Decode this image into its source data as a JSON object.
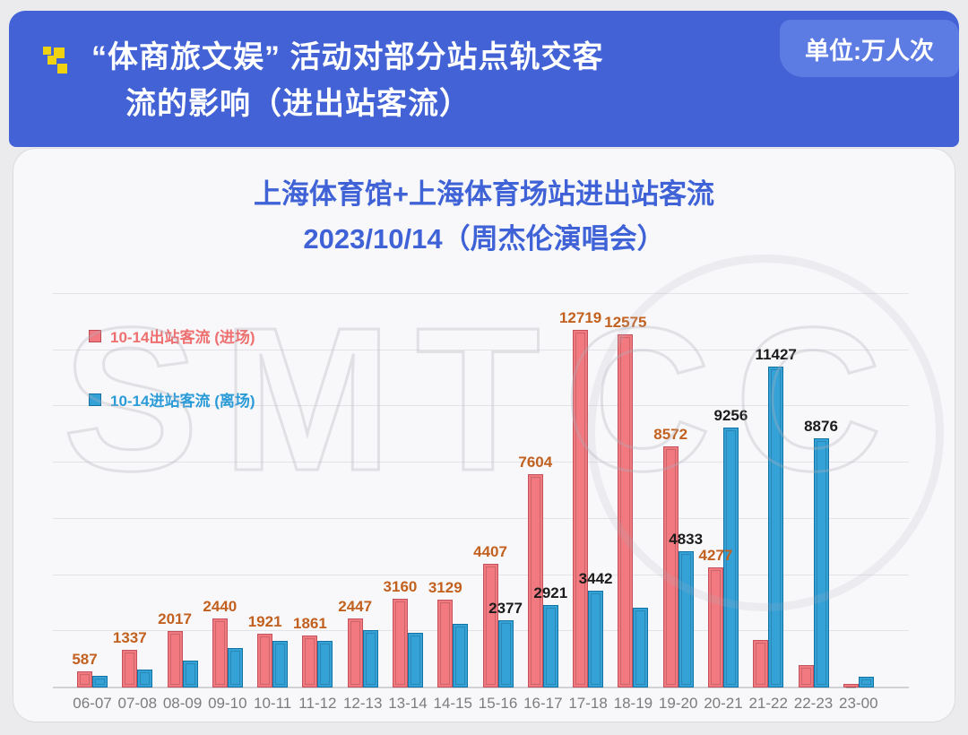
{
  "header": {
    "title_line1": "“体商旅文娱” 活动对部分站点轨交客",
    "title_line2": "流的影响（进出站客流）",
    "unit_badge": "单位:万人次",
    "banner_color": "#4262d6",
    "badge_color": "#5d7ce3",
    "logo_color": "#f0d210"
  },
  "chart": {
    "title_line1": "上海体育馆+上海体育场站进出站客流",
    "title_line2": "2023/10/14（周杰伦演唱会）",
    "title_color": "#3f62d7",
    "watermark": "SMTCC"
  },
  "chart_data": {
    "type": "bar",
    "title": "上海体育馆+上海体育场站进出站客流 2023/10/14（周杰伦演唱会）",
    "unit": "万人次",
    "categories": [
      "06-07",
      "07-08",
      "08-09",
      "09-10",
      "10-11",
      "11-12",
      "12-13",
      "13-14",
      "14-15",
      "15-16",
      "16-17",
      "17-18",
      "18-19",
      "19-20",
      "20-21",
      "21-22",
      "22-23",
      "23-00"
    ],
    "series": [
      {
        "name": "10-14出站客流 (进场)",
        "color": "#f1797f",
        "border_color": "#c2525c",
        "label_color": "#c2611f",
        "values": [
          587,
          1337,
          2017,
          2440,
          1921,
          1861,
          2447,
          3160,
          3129,
          4407,
          7604,
          12719,
          12575,
          8572,
          4277,
          1700,
          800,
          130
        ],
        "labels": [
          "587",
          "1337",
          "2017",
          "2440",
          "1921",
          "1861",
          "2447",
          "3160",
          "3129",
          "4407",
          "7604",
          "12719",
          "12575",
          "8572",
          "4277",
          "",
          "",
          ""
        ]
      },
      {
        "name": "10-14进站客流 (离场)",
        "color": "#34a1d7",
        "border_color": "#1272a3",
        "label_color": "#1b1b1b",
        "values": [
          400,
          640,
          970,
          1400,
          1670,
          1650,
          2040,
          1950,
          2250,
          2377,
          2921,
          3442,
          2850,
          4833,
          9256,
          11427,
          8876,
          370
        ],
        "labels": [
          "",
          "",
          "",
          "",
          "",
          "",
          "",
          "",
          "",
          "2377",
          "2921",
          "3442",
          "",
          "4833",
          "9256",
          "11427",
          "8876",
          ""
        ]
      }
    ],
    "xlabel": "",
    "ylabel": "",
    "ylim": [
      0,
      14000
    ],
    "gridline_step": 2000,
    "grid": true,
    "y_axis_ticks_visible": false,
    "legend_position": "top-left",
    "value_labels": true
  }
}
